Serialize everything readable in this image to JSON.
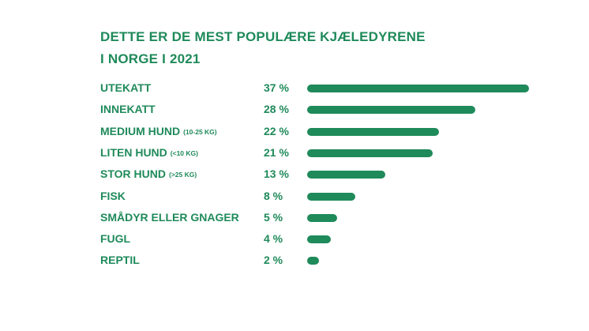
{
  "title": {
    "line1": "DETTE ER DE MEST POPULÆRE KJÆLEDYRENE",
    "line2": "I NORGE I 2021"
  },
  "colors": {
    "accent": "#1f8a5a",
    "background": "#ffffff"
  },
  "chart_data": {
    "type": "bar",
    "orientation": "horizontal",
    "title": "DETTE ER DE MEST POPULÆRE KJÆLEDYRENE I NORGE I 2021",
    "unit": "%",
    "grid": false,
    "legend": "none",
    "xlim": [
      0,
      37
    ],
    "items": [
      {
        "category": "UTEKATT",
        "qualifier": "",
        "value": 37,
        "value_label": "37 %"
      },
      {
        "category": "INNEKATT",
        "qualifier": "",
        "value": 28,
        "value_label": "28 %"
      },
      {
        "category": "MEDIUM HUND",
        "qualifier": "(10-25 KG)",
        "value": 22,
        "value_label": "22 %"
      },
      {
        "category": "LITEN HUND",
        "qualifier": "(<10 KG)",
        "value": 21,
        "value_label": "21 %"
      },
      {
        "category": "STOR HUND",
        "qualifier": "(>25 KG)",
        "value": 13,
        "value_label": "13 %"
      },
      {
        "category": "FISK",
        "qualifier": "",
        "value": 8,
        "value_label": "8 %"
      },
      {
        "category": "SMÅDYR ELLER GNAGER",
        "qualifier": "",
        "value": 5,
        "value_label": "5 %"
      },
      {
        "category": "FUGL",
        "qualifier": "",
        "value": 4,
        "value_label": "4 %"
      },
      {
        "category": "REPTIL",
        "qualifier": "",
        "value": 2,
        "value_label": "2 %"
      }
    ]
  }
}
